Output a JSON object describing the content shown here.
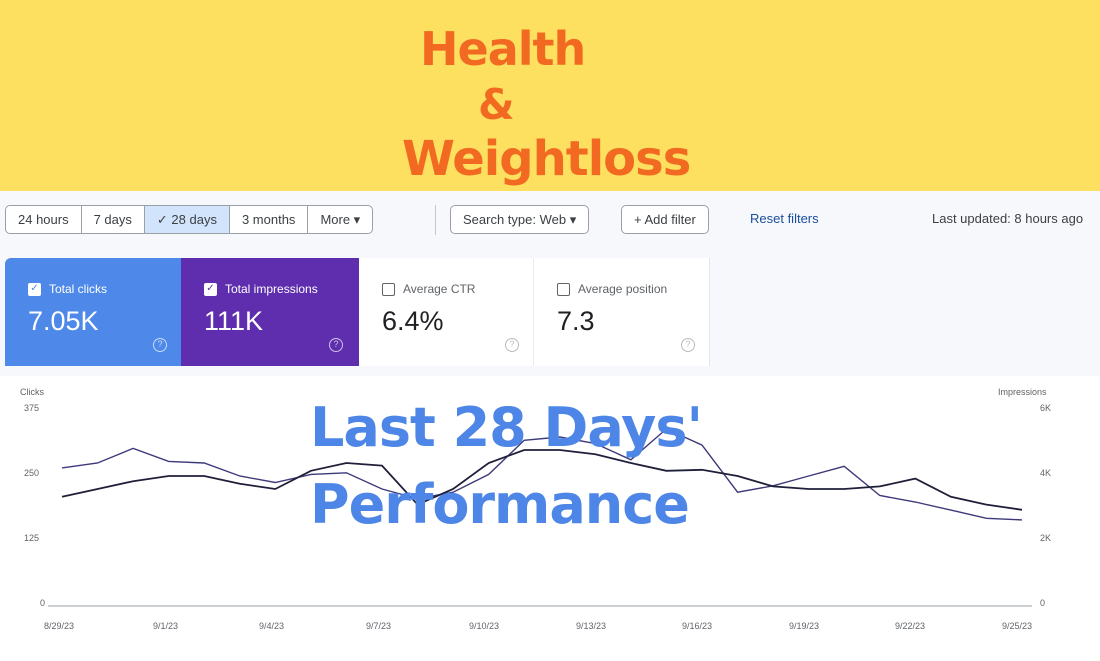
{
  "banner": {
    "line1": "Health",
    "line2": "&",
    "line3": "Weightloss",
    "color": "#f26a21",
    "background": "#fde060"
  },
  "filters": {
    "date_ranges": [
      {
        "label": "24 hours",
        "selected": false
      },
      {
        "label": "7 days",
        "selected": false
      },
      {
        "label": "✓  28 days",
        "selected": true
      },
      {
        "label": "3 months",
        "selected": false
      },
      {
        "label": "More  ▾",
        "selected": false
      }
    ],
    "search_type": "Search type: Web  ▾",
    "add_filter": "+  Add filter",
    "reset": "Reset filters",
    "last_updated": "Last updated: 8 hours ago"
  },
  "metrics": [
    {
      "label": "Total clicks",
      "value": "7.05K",
      "checked": true,
      "color": "#4e88e8"
    },
    {
      "label": "Total impressions",
      "value": "111K",
      "checked": true,
      "color": "#5e2eae"
    },
    {
      "label": "Average CTR",
      "value": "6.4%",
      "checked": false
    },
    {
      "label": "Average position",
      "value": "7.3",
      "checked": false
    }
  ],
  "overlay": {
    "line1": "Last 28 Days'",
    "line2": "Performance"
  },
  "chart_data": {
    "type": "line",
    "title": "",
    "xlabel": "",
    "ylabel": "Clicks",
    "y2label": "Impressions",
    "yticks": [
      "375",
      "250",
      "125",
      "0"
    ],
    "y2ticks": [
      "6K",
      "4K",
      "2K",
      "0"
    ],
    "ylim": [
      0,
      375
    ],
    "y2lim": [
      0,
      6000
    ],
    "grid": false,
    "x": [
      "8/29/23",
      "9/1/23",
      "9/4/23",
      "9/7/23",
      "9/10/23",
      "9/13/23",
      "9/16/23",
      "9/19/23",
      "9/22/23",
      "9/25/23"
    ],
    "series": [
      {
        "name": "Clicks",
        "axis": "left",
        "color": "#1f1f3a",
        "values": [
          210,
          225,
          240,
          250,
          250,
          235,
          225,
          260,
          275,
          270,
          195,
          225,
          275,
          300,
          300,
          292,
          275,
          260,
          262,
          250,
          230,
          225,
          225,
          230,
          245,
          210,
          195,
          185
        ]
      },
      {
        "name": "Impressions",
        "axis": "right",
        "color": "#3e3a7a",
        "values": [
          4250,
          4400,
          4850,
          4450,
          4400,
          4000,
          3800,
          4050,
          4100,
          3600,
          3300,
          3500,
          4050,
          5100,
          5200,
          5000,
          4500,
          5450,
          4950,
          3500,
          3700,
          4000,
          4300,
          3400,
          3200,
          2950,
          2700,
          2650
        ]
      }
    ]
  },
  "chart_axes": {
    "left_title": "Clicks",
    "right_title": "Impressions",
    "left_ticks": [
      "375",
      "250",
      "125",
      "0"
    ],
    "right_ticks": [
      "6K",
      "4K",
      "2K",
      "0"
    ],
    "x_labels": [
      "8/29/23",
      "9/1/23",
      "9/4/23",
      "9/7/23",
      "9/10/23",
      "9/13/23",
      "9/16/23",
      "9/19/23",
      "9/22/23",
      "9/25/23"
    ]
  }
}
